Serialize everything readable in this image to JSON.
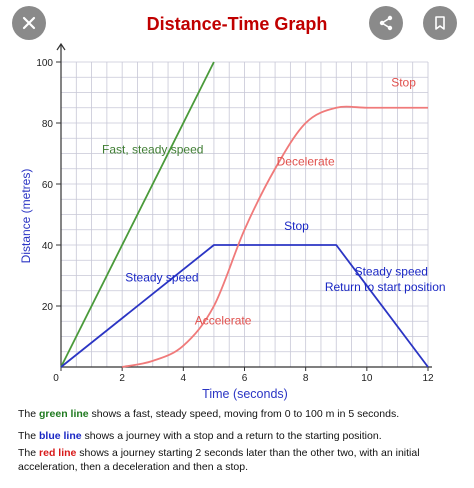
{
  "toolbar": {
    "close_icon": "close-icon",
    "share_icon": "share-icon",
    "save_icon": "bookmark-icon"
  },
  "colors": {
    "green_line": "#4a9a3a",
    "blue_line": "#2b35c4",
    "red_line": "#f07a7a",
    "title": "#c00000",
    "grid": "#c7c7d6"
  },
  "chart_data": {
    "type": "line",
    "title": "Distance-Time Graph",
    "xlabel": "Time (seconds)",
    "ylabel": "Distance (metres)",
    "xlim": [
      0,
      12
    ],
    "ylim": [
      0,
      100
    ],
    "x_ticks": [
      0,
      2,
      4,
      6,
      8,
      10,
      12
    ],
    "y_ticks": [
      20,
      40,
      60,
      80,
      100
    ],
    "grid": true,
    "series": [
      {
        "x": [
          0,
          5
        ],
        "y": [
          0,
          100
        ]
      },
      {
        "x": [
          0,
          5,
          9,
          12
        ],
        "y": [
          0,
          40,
          40,
          0
        ]
      },
      {
        "x": [
          2,
          3,
          4,
          5,
          6,
          7,
          8,
          9,
          10,
          11,
          12
        ],
        "y": [
          0,
          2,
          7,
          20,
          45,
          65,
          80,
          85,
          85,
          85,
          85
        ]
      }
    ],
    "annotations": [
      {
        "text": "Fast, steady speed",
        "x": 3,
        "y": 70
      },
      {
        "text": "Decelerate",
        "x": 8,
        "y": 66
      },
      {
        "text": "Stop",
        "x": 11.2,
        "y": 92
      },
      {
        "text": "Stop",
        "x": 7.7,
        "y": 45
      },
      {
        "text": "Steady speed",
        "x": 3.3,
        "y": 28
      },
      {
        "text": "Steady speed",
        "x": 10.8,
        "y": 30
      },
      {
        "text": "Return to start position",
        "x": 10.6,
        "y": 25
      },
      {
        "text": "Accelerate",
        "x": 5.3,
        "y": 14
      }
    ]
  },
  "captions": {
    "green": {
      "pre": "The ",
      "kw": "green line",
      "post": " shows a fast, steady speed, moving from 0 to 100 m in 5 seconds."
    },
    "blue": {
      "pre": "The ",
      "kw": "blue line",
      "post": " shows a journey with a stop and a return to the starting position."
    },
    "red": {
      "pre": "The ",
      "kw": "red line",
      "post": " shows a journey starting 2 seconds later than the other two, with an initial acceleration, then a deceleration and then a stop."
    }
  }
}
